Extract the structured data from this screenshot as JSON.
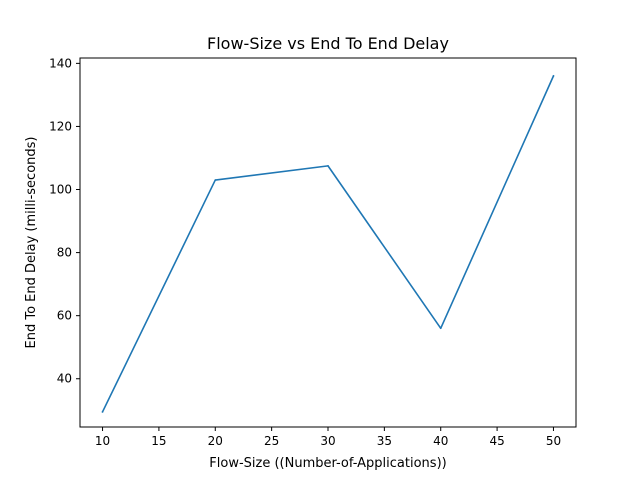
{
  "chart_data": {
    "type": "line",
    "title": "Flow-Size vs End To End Delay",
    "xlabel": "Flow-Size ((Number-of-Applications))",
    "ylabel": "End To End Delay (milli-seconds)",
    "xlim": [
      8,
      52
    ],
    "ylim": [
      24.7,
      141.7
    ],
    "xticks": [
      10,
      15,
      20,
      25,
      30,
      35,
      40,
      45,
      50
    ],
    "yticks": [
      40,
      60,
      80,
      100,
      120,
      140
    ],
    "grid": false,
    "legend": "none",
    "series": [
      {
        "color": "#1f77b4",
        "x": [
          10,
          20,
          30,
          40,
          50
        ],
        "y": [
          29.5,
          103.0,
          107.5,
          56.0,
          136.0
        ]
      }
    ]
  }
}
